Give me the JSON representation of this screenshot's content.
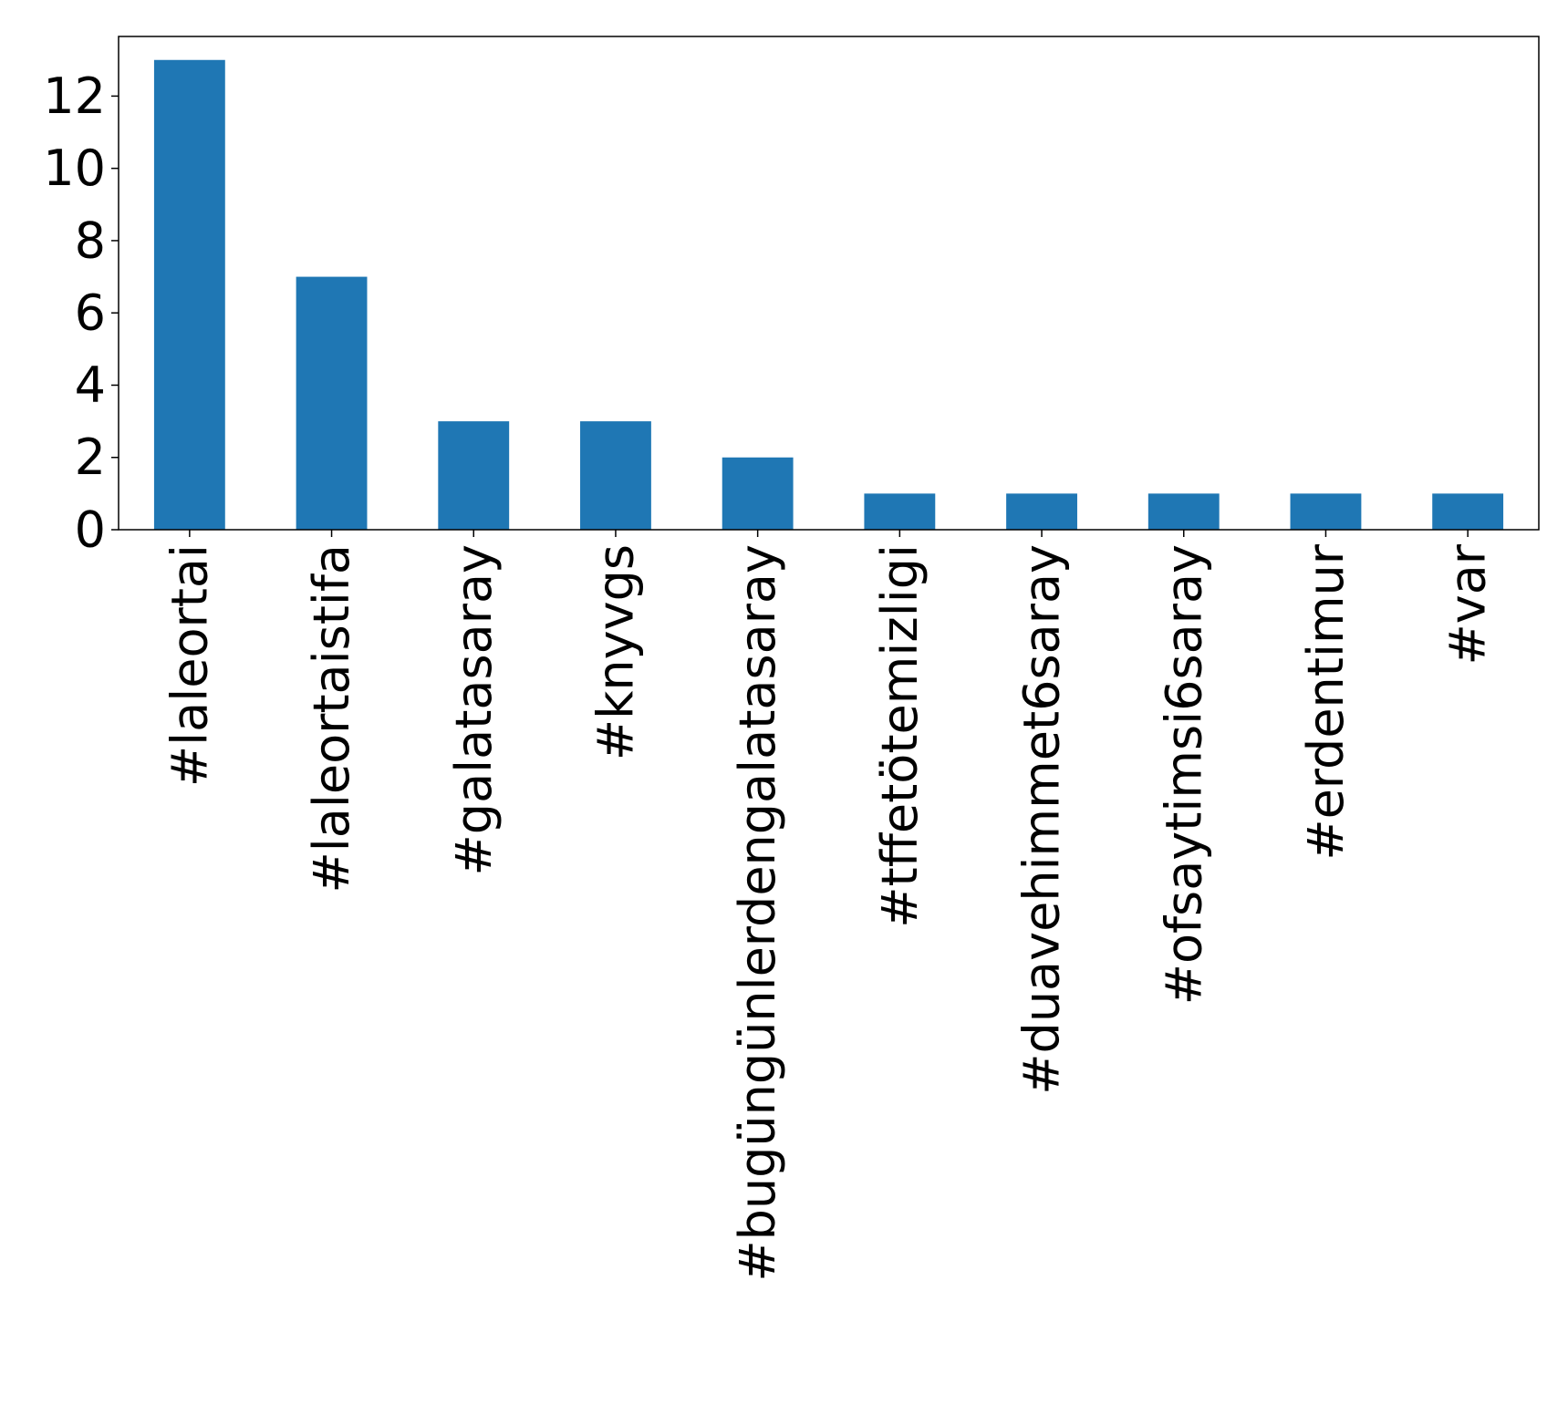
{
  "chart_data": {
    "type": "bar",
    "categories": [
      "#laleortai",
      "#laleortaistifa",
      "#galatasaray",
      "#knyvgs",
      "#bugüngünlerdengalatasaray",
      "#tffetötemizligi",
      "#duavehimmet6saray",
      "#ofsaytimsi6saray",
      "#erdentimur",
      "#var"
    ],
    "values": [
      13,
      7,
      3,
      3,
      2,
      1,
      1,
      1,
      1,
      1
    ],
    "ylim": [
      0,
      13.65
    ],
    "yticks": [
      0,
      2,
      4,
      6,
      8,
      10,
      12
    ],
    "xlabel": "",
    "ylabel": "",
    "title": "",
    "legend": "none",
    "grid": false,
    "bar_color": "#1f77b4"
  }
}
